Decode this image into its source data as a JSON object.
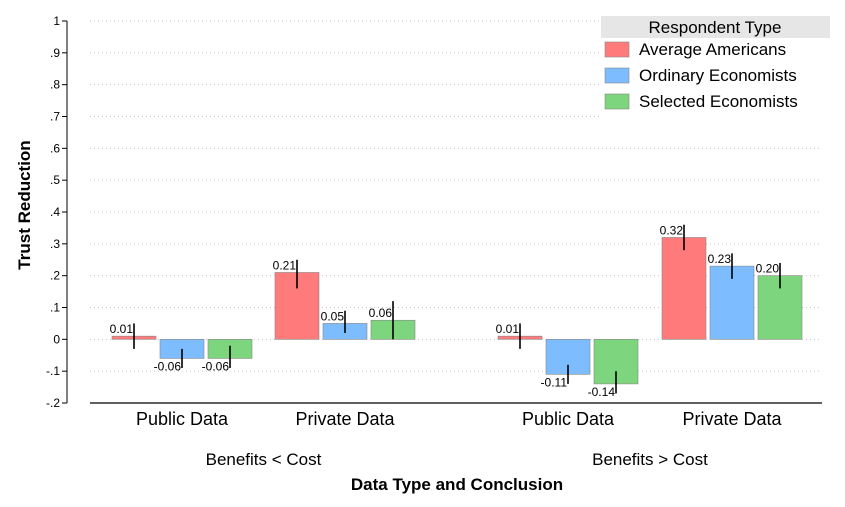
{
  "chart_data": {
    "type": "bar",
    "ylabel": "Trust Reduction",
    "xlabel": "Data Type and Conclusion",
    "ylim": [
      -0.2,
      1.0
    ],
    "yticks": [
      -0.2,
      -0.1,
      0,
      0.1,
      0.2,
      0.3,
      0.4,
      0.5,
      0.6,
      0.7,
      0.8,
      0.9,
      1.0
    ],
    "ytick_labels": [
      "-.2",
      "-.1",
      "0",
      ".1",
      ".2",
      ".3",
      ".4",
      ".5",
      ".6",
      ".7",
      ".8",
      ".9",
      "1"
    ],
    "grid": "horizontal dotted",
    "legend": {
      "title": "Respondent Type",
      "position": "top-right"
    },
    "groups": [
      {
        "label": "Benefits < Cost",
        "categories": [
          "Public Data",
          "Private Data"
        ]
      },
      {
        "label": "Benefits > Cost",
        "categories": [
          "Public Data",
          "Private Data"
        ]
      }
    ],
    "series": [
      {
        "name": "Average Americans",
        "color": "#ff7a7a",
        "values": [
          0.01,
          0.21,
          0.01,
          0.32
        ],
        "labels": [
          "0.01",
          "0.21",
          "0.01",
          "0.32"
        ],
        "ci": [
          [
            -0.03,
            0.05
          ],
          [
            0.16,
            0.25
          ],
          [
            -0.03,
            0.05
          ],
          [
            0.28,
            0.36
          ]
        ]
      },
      {
        "name": "Ordinary Economists",
        "color": "#7dbcff",
        "values": [
          -0.06,
          0.05,
          -0.11,
          0.23
        ],
        "labels": [
          "-0.06",
          "0.05",
          "-0.11",
          "0.23"
        ],
        "ci": [
          [
            -0.09,
            -0.03
          ],
          [
            0.02,
            0.09
          ],
          [
            -0.14,
            -0.08
          ],
          [
            0.19,
            0.27
          ]
        ]
      },
      {
        "name": "Selected Economists",
        "color": "#7dd67d",
        "values": [
          -0.06,
          0.06,
          -0.14,
          0.2
        ],
        "labels": [
          "-0.06",
          "0.06",
          "-0.14",
          "0.20"
        ],
        "ci": [
          [
            -0.09,
            -0.02
          ],
          [
            0.0,
            0.12
          ],
          [
            -0.17,
            -0.1
          ],
          [
            0.16,
            0.24
          ]
        ]
      }
    ]
  }
}
